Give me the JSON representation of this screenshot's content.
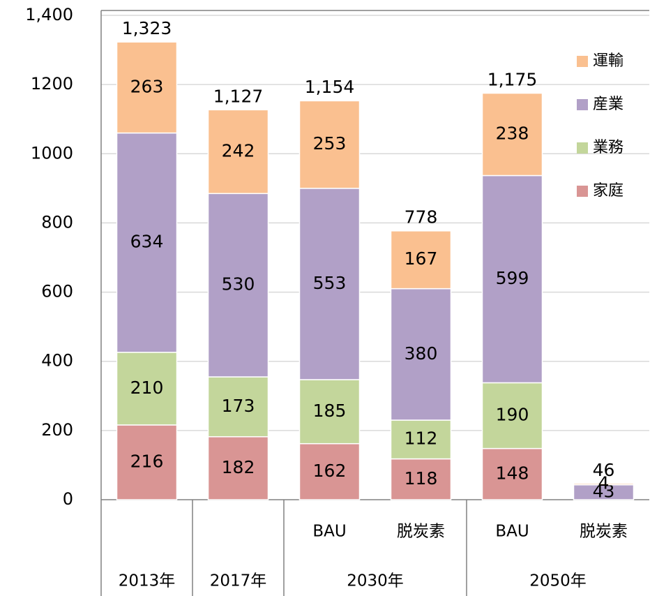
{
  "chart_data": {
    "type": "stacked_bar",
    "categories": [
      null,
      null,
      "BAU",
      "脱炭素",
      "BAU",
      "脱炭素"
    ],
    "group_labels": [
      "2013年",
      "2017年",
      "2030年",
      "2050年"
    ],
    "group_sizes": [
      1,
      1,
      2,
      2
    ],
    "series": [
      {
        "name": "家庭",
        "color": "#d99594",
        "values": [
          216,
          182,
          162,
          118,
          148,
          null
        ]
      },
      {
        "name": "業務",
        "color": "#c3d69b",
        "values": [
          210,
          173,
          185,
          112,
          190,
          null
        ]
      },
      {
        "name": "産業",
        "color": "#b1a0c7",
        "values": [
          634,
          530,
          553,
          380,
          599,
          43
        ]
      },
      {
        "name": "運輸",
        "color": "#fac090",
        "values": [
          263,
          242,
          253,
          167,
          238,
          4
        ]
      }
    ],
    "totals": [
      1323,
      1127,
      1154,
      778,
      1175,
      46
    ],
    "total_labels": [
      "1,323",
      "1,127",
      "1,154",
      "778",
      "1,175",
      "46"
    ],
    "ylim": [
      0,
      1400
    ],
    "yticks": [
      0,
      200,
      400,
      600,
      800,
      1000,
      1200,
      {
        "value": 1400,
        "label": "1,400"
      }
    ],
    "grid": true,
    "legend": "top-right"
  }
}
